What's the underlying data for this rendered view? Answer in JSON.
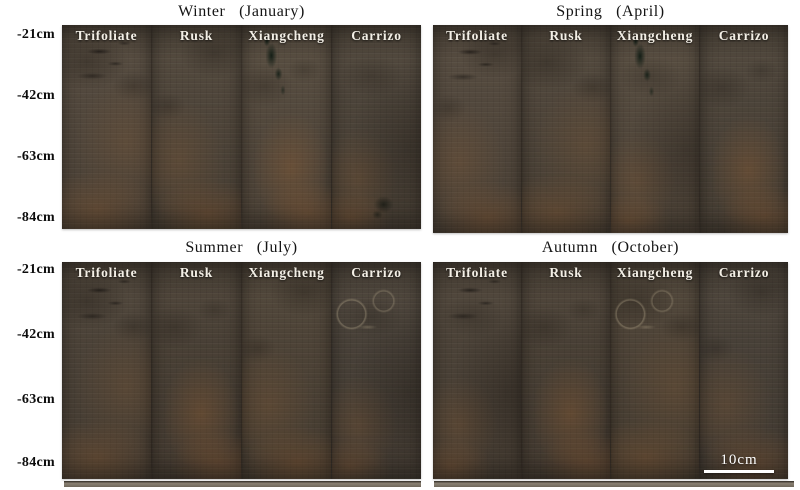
{
  "figure": {
    "depth_labels": [
      "-21cm",
      "-42cm",
      "-63cm",
      "-84cm"
    ],
    "columns": [
      "Trifoliate",
      "Rusk",
      "Xiangcheng",
      "Carrizo"
    ],
    "panels": [
      {
        "season": "Winter",
        "month": "January",
        "title": "Winter (January)"
      },
      {
        "season": "Spring",
        "month": "April",
        "title": "Spring (April)"
      },
      {
        "season": "Summer",
        "month": "July",
        "title": "Summer (July)"
      },
      {
        "season": "Autumn",
        "month": "October",
        "title": "Autumn (October)"
      }
    ],
    "scale_bar": {
      "label": "10cm"
    },
    "colors": {
      "background": "#ffffff",
      "title_text": "#141414",
      "depth_text": "#0d0d0d",
      "column_label_text": "#f3efe6",
      "soil_base_upper": "#51483d",
      "soil_base_lower": "#483f35",
      "root_patch_dark": "#14261a",
      "soil_patch_orange": "#96623a",
      "scale_bar_color": "#ffffff"
    }
  }
}
